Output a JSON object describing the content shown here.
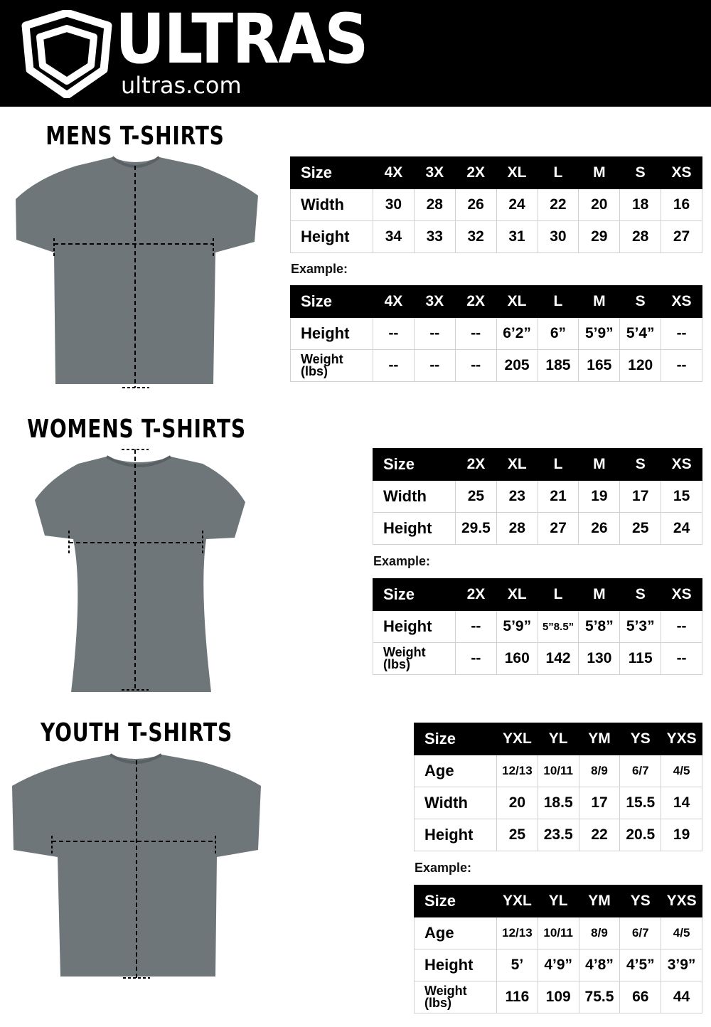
{
  "header": {
    "brand": "ULTRAS",
    "url": "ultras.com",
    "background": "#000000"
  },
  "sections": [
    {
      "title": "MENS T-SHIRTS",
      "example_label": "Example:",
      "size_table": {
        "header": [
          "Size",
          "4X",
          "3X",
          "2X",
          "XL",
          "L",
          "M",
          "S",
          "XS"
        ],
        "rows": [
          [
            "Width",
            "30",
            "28",
            "26",
            "24",
            "22",
            "20",
            "18",
            "16"
          ],
          [
            "Height",
            "34",
            "33",
            "32",
            "31",
            "30",
            "29",
            "28",
            "27"
          ]
        ]
      },
      "example_table": {
        "header": [
          "Size",
          "4X",
          "3X",
          "2X",
          "XL",
          "L",
          "M",
          "S",
          "XS"
        ],
        "rows": [
          [
            "Height",
            "--",
            "--",
            "--",
            "6’2”",
            "6”",
            "5’9”",
            "5’4”",
            "--"
          ],
          [
            "Weight (lbs)",
            "--",
            "--",
            "--",
            "205",
            "185",
            "165",
            "120",
            "--"
          ]
        ]
      }
    },
    {
      "title": "WOMENS T-SHIRTS",
      "example_label": "Example:",
      "size_table": {
        "header": [
          "Size",
          "2X",
          "XL",
          "L",
          "M",
          "S",
          "XS"
        ],
        "rows": [
          [
            "Width",
            "25",
            "23",
            "21",
            "19",
            "17",
            "15"
          ],
          [
            "Height",
            "29.5",
            "28",
            "27",
            "26",
            "25",
            "24"
          ]
        ]
      },
      "example_table": {
        "header": [
          "Size",
          "2X",
          "XL",
          "L",
          "M",
          "S",
          "XS"
        ],
        "rows": [
          [
            "Height",
            "--",
            "5’9”",
            "5”8.5”",
            "5’8”",
            "5’3”",
            "--"
          ],
          [
            "Weight (lbs)",
            "--",
            "160",
            "142",
            "130",
            "115",
            "--"
          ]
        ]
      }
    },
    {
      "title": "YOUTH T-SHIRTS",
      "example_label": "Example:",
      "size_table": {
        "header": [
          "Size",
          "YXL",
          "YL",
          "YM",
          "YS",
          "YXS"
        ],
        "rows": [
          [
            "Age",
            "12/13",
            "10/11",
            "8/9",
            "6/7",
            "4/5"
          ],
          [
            "Width",
            "20",
            "18.5",
            "17",
            "15.5",
            "14"
          ],
          [
            "Height",
            "25",
            "23.5",
            "22",
            "20.5",
            "19"
          ]
        ]
      },
      "example_table": {
        "header": [
          "Size",
          "YXL",
          "YL",
          "YM",
          "YS",
          "YXS"
        ],
        "rows": [
          [
            "Age",
            "12/13",
            "10/11",
            "8/9",
            "6/7",
            "4/5"
          ],
          [
            "Height",
            "5’",
            "4’9”",
            "4’8”",
            "4’5”",
            "3’9”"
          ],
          [
            "Weight (lbs)",
            "116",
            "109",
            "75.5",
            "66",
            "44"
          ]
        ]
      }
    }
  ],
  "shirt_color": "#6e767a"
}
